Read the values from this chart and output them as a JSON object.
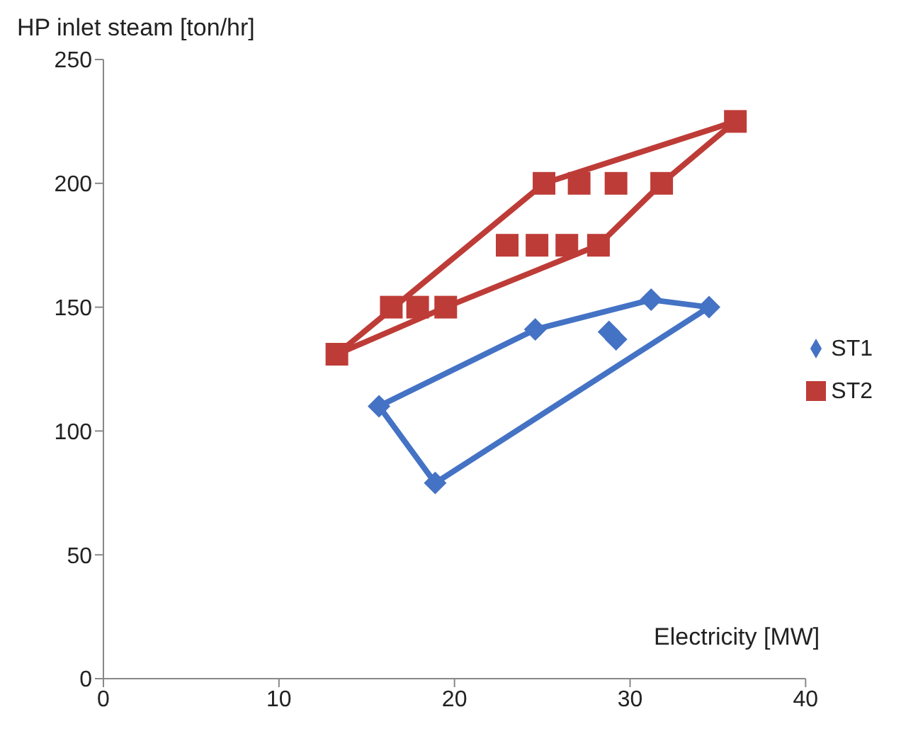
{
  "chart_data": {
    "type": "line",
    "ylabel": "HP inlet steam  [ton/hr]",
    "xlabel": "Electricity [MW]",
    "xlim": [
      0,
      40
    ],
    "xticks": [
      0,
      10,
      20,
      30,
      40
    ],
    "ylim": [
      0,
      250
    ],
    "yticks": [
      0,
      50,
      100,
      150,
      200,
      250
    ],
    "grid": false,
    "legend": "right",
    "series": [
      {
        "color": "#4472c4",
        "marker": "none",
        "line_style": "solid",
        "x": [
          15.7,
          24.6,
          31.2,
          34.5
        ],
        "values": [
          110,
          141,
          153,
          150
        ]
      },
      {
        "color": "#4472c4",
        "marker": "none",
        "line_style": "solid",
        "x": [
          15.7,
          18.9,
          34.5
        ],
        "values": [
          110,
          79,
          150
        ]
      },
      {
        "color": "#be3c37",
        "marker": "none",
        "line_style": "solid",
        "x": [
          13.3,
          25.1,
          36.0
        ],
        "values": [
          131,
          200,
          225
        ]
      },
      {
        "color": "#be3c37",
        "marker": "none",
        "line_style": "solid",
        "x": [
          13.3,
          19.5,
          28.2,
          31.8,
          36.0
        ],
        "values": [
          131,
          150,
          175,
          200,
          225
        ]
      },
      {
        "type": "scatter",
        "name": "ST1",
        "color": "#4472c4",
        "marker": "diamond",
        "x": [
          15.7,
          18.9,
          24.6,
          31.2,
          34.5,
          28.8,
          29.2
        ],
        "values": [
          110,
          79,
          141,
          153,
          150,
          140,
          137
        ]
      },
      {
        "type": "scatter",
        "name": "ST2",
        "color": "#be3c37",
        "marker": "square",
        "x": [
          13.3,
          16.4,
          17.9,
          19.5,
          23.0,
          24.7,
          26.4,
          28.2,
          25.1,
          27.1,
          29.2,
          31.8,
          36.0
        ],
        "values": [
          131,
          150,
          150,
          150,
          175,
          175,
          175,
          175,
          200,
          200,
          200,
          200,
          225
        ]
      }
    ]
  }
}
